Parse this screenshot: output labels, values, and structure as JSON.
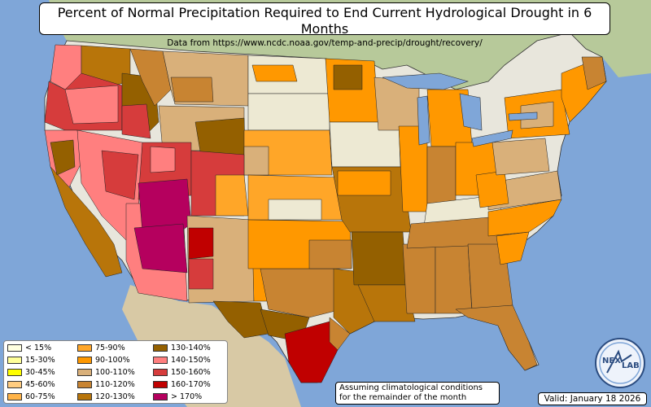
{
  "header": {
    "title": "Percent of Normal Precipitation Required to End Current Hydrological Drought in 6 Months",
    "subtitle": "Data from https://www.ncdc.noaa.gov/temp-and-precip/drought/recovery/"
  },
  "legend": {
    "items": [
      {
        "label": "< 15%",
        "color": "#ffffe0"
      },
      {
        "label": "15-30%",
        "color": "#ffff99"
      },
      {
        "label": "30-45%",
        "color": "#ffff00"
      },
      {
        "label": "45-60%",
        "color": "#ffcc80"
      },
      {
        "label": "60-75%",
        "color": "#ffb347"
      },
      {
        "label": "75-90%",
        "color": "#ffa628"
      },
      {
        "label": "90-100%",
        "color": "#ff9800"
      },
      {
        "label": "100-110%",
        "color": "#d9b07a"
      },
      {
        "label": "110-120%",
        "color": "#c88432"
      },
      {
        "label": "120-130%",
        "color": "#b8750a"
      },
      {
        "label": "130-140%",
        "color": "#946000"
      },
      {
        "label": "140-150%",
        "color": "#ff7f7f"
      },
      {
        "label": "150-160%",
        "color": "#d63c3c"
      },
      {
        "label": "160-170%",
        "color": "#c00000"
      },
      {
        "label": "> 170%",
        "color": "#b5005e"
      }
    ]
  },
  "note": {
    "line1": "Assuming climatological conditions",
    "line2": "for the remainder of the month"
  },
  "valid": "Valid: January 18 2026",
  "logo": {
    "text1": "NEX",
    "text2": "LAB"
  },
  "colors": {
    "water": "#7fa6d8",
    "land": "#e8e6dc",
    "canada": "#b7c99a",
    "mexico": "#d8c9a5"
  }
}
